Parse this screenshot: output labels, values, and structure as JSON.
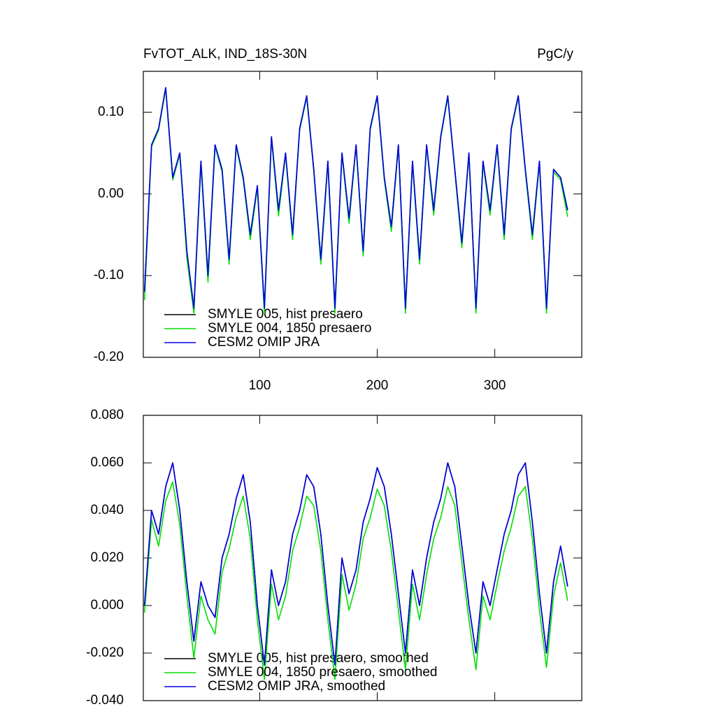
{
  "chart_data": [
    {
      "type": "line",
      "title": "FvTOT_ALK, IND_18S-30N",
      "units": "PgC/y",
      "xlim": [
        1,
        374
      ],
      "xticks": [
        100,
        200,
        300
      ],
      "xtick_labels": true,
      "ylim": [
        -0.2,
        0.15
      ],
      "yticks": [
        {
          "value": -0.2,
          "label": "-0.20"
        },
        {
          "value": -0.1,
          "label": "-0.10"
        },
        {
          "value": 0,
          "label": "0.00"
        },
        {
          "value": 0.1,
          "label": "0.10"
        }
      ],
      "x": [
        2,
        8,
        14,
        20,
        26,
        32,
        38,
        44,
        50,
        56,
        62,
        68,
        74,
        80,
        86,
        92,
        98,
        104,
        110,
        116,
        122,
        128,
        134,
        140,
        146,
        152,
        158,
        164,
        170,
        176,
        182,
        188,
        194,
        200,
        206,
        212,
        218,
        224,
        230,
        236,
        242,
        248,
        254,
        260,
        266,
        272,
        278,
        284,
        290,
        296,
        302,
        308,
        314,
        320,
        326,
        332,
        338,
        344,
        350,
        356,
        362
      ],
      "series": [
        {
          "name": "SMYLE 005, hist presaero",
          "color": "#000000",
          "values": [
            -0.12,
            0.06,
            0.08,
            0.13,
            0.02,
            0.05,
            -0.07,
            -0.14,
            0.04,
            -0.1,
            0.06,
            0.03,
            -0.08,
            0.06,
            0.02,
            -0.05,
            0.01,
            -0.14,
            0.07,
            -0.02,
            0.05,
            -0.05,
            0.08,
            0.12,
            0.03,
            -0.08,
            0.04,
            -0.14,
            0.05,
            -0.03,
            0.06,
            -0.07,
            0.08,
            0.12,
            0.02,
            -0.04,
            0.06,
            -0.14,
            0.04,
            -0.08,
            0.06,
            -0.02,
            0.07,
            0.12,
            0.03,
            -0.06,
            0.05,
            -0.14,
            0.04,
            -0.02,
            0.06,
            -0.05,
            0.08,
            0.12,
            0.03,
            -0.05,
            0.04,
            -0.14,
            0.03,
            0.02,
            -0.02
          ]
        },
        {
          "name": "SMYLE 004, 1850 presaero",
          "color": "#00e000",
          "values": [
            -0.13,
            0.058,
            0.078,
            0.128,
            0.017,
            0.048,
            -0.078,
            -0.146,
            0.037,
            -0.108,
            0.058,
            0.027,
            -0.086,
            0.058,
            0.017,
            -0.056,
            0.007,
            -0.146,
            0.068,
            -0.027,
            0.048,
            -0.056,
            0.078,
            0.118,
            0.027,
            -0.086,
            0.037,
            -0.146,
            0.048,
            -0.036,
            0.058,
            -0.076,
            0.078,
            0.118,
            0.017,
            -0.046,
            0.058,
            -0.146,
            0.037,
            -0.086,
            0.058,
            -0.026,
            0.068,
            0.118,
            0.027,
            -0.066,
            0.048,
            -0.146,
            0.037,
            -0.026,
            0.058,
            -0.056,
            0.078,
            0.118,
            0.027,
            -0.056,
            0.037,
            -0.146,
            0.027,
            0.017,
            -0.028
          ]
        },
        {
          "name": "CESM2 OMIP JRA",
          "color": "#0000e6",
          "values": [
            -0.12,
            0.06,
            0.08,
            0.13,
            0.02,
            0.05,
            -0.07,
            -0.14,
            0.04,
            -0.1,
            0.06,
            0.03,
            -0.08,
            0.06,
            0.02,
            -0.05,
            0.01,
            -0.14,
            0.07,
            -0.02,
            0.05,
            -0.05,
            0.08,
            0.12,
            0.03,
            -0.08,
            0.04,
            -0.14,
            0.05,
            -0.03,
            0.06,
            -0.07,
            0.08,
            0.12,
            0.02,
            -0.04,
            0.06,
            -0.14,
            0.04,
            -0.08,
            0.06,
            -0.02,
            0.07,
            0.12,
            0.03,
            -0.06,
            0.05,
            -0.14,
            0.04,
            -0.02,
            0.06,
            -0.05,
            0.08,
            0.12,
            0.03,
            -0.05,
            0.04,
            -0.14,
            0.03,
            0.02,
            -0.02
          ]
        }
      ]
    },
    {
      "type": "line",
      "xlim": [
        1,
        374
      ],
      "xticks": [
        100,
        200,
        300
      ],
      "xtick_labels": false,
      "ylim": [
        -0.04,
        0.08
      ],
      "yticks": [
        {
          "value": -0.04,
          "label": "-0.040"
        },
        {
          "value": -0.02,
          "label": "-0.020"
        },
        {
          "value": 0,
          "label": "0.000"
        },
        {
          "value": 0.02,
          "label": "0.020"
        },
        {
          "value": 0.04,
          "label": "0.040"
        },
        {
          "value": 0.06,
          "label": "0.060"
        },
        {
          "value": 0.08,
          "label": "0.080"
        }
      ],
      "x": [
        2,
        8,
        14,
        20,
        26,
        32,
        38,
        44,
        50,
        56,
        62,
        68,
        74,
        80,
        86,
        92,
        98,
        104,
        110,
        116,
        122,
        128,
        134,
        140,
        146,
        152,
        158,
        164,
        170,
        176,
        182,
        188,
        194,
        200,
        206,
        212,
        218,
        224,
        230,
        236,
        242,
        248,
        254,
        260,
        266,
        272,
        278,
        284,
        290,
        296,
        302,
        308,
        314,
        320,
        326,
        332,
        338,
        344,
        350,
        356,
        362
      ],
      "series": [
        {
          "name": "SMYLE 005, hist presaero, smoothed",
          "color": "#000000",
          "values": [
            0.0,
            0.04,
            0.03,
            0.05,
            0.06,
            0.04,
            0.01,
            -0.015,
            0.01,
            0.0,
            -0.005,
            0.02,
            0.03,
            0.045,
            0.055,
            0.035,
            0.0,
            -0.025,
            0.015,
            0.0,
            0.01,
            0.03,
            0.04,
            0.055,
            0.05,
            0.03,
            0.0,
            -0.025,
            0.02,
            0.005,
            0.015,
            0.035,
            0.045,
            0.058,
            0.05,
            0.03,
            0.005,
            -0.02,
            0.015,
            0.0,
            0.02,
            0.035,
            0.045,
            0.06,
            0.05,
            0.025,
            0.0,
            -0.02,
            0.01,
            0.0,
            0.015,
            0.03,
            0.04,
            0.055,
            0.06,
            0.035,
            0.005,
            -0.02,
            0.01,
            0.025,
            0.008
          ]
        },
        {
          "name": "SMYLE 004, 1850 presaero, smoothed",
          "color": "#00e000",
          "values": [
            -0.003,
            0.036,
            0.025,
            0.044,
            0.052,
            0.034,
            0.004,
            -0.022,
            0.004,
            -0.006,
            -0.012,
            0.014,
            0.024,
            0.037,
            0.046,
            0.028,
            -0.006,
            -0.031,
            0.009,
            -0.006,
            0.004,
            0.023,
            0.033,
            0.046,
            0.042,
            0.023,
            -0.006,
            -0.031,
            0.013,
            -0.002,
            0.009,
            0.028,
            0.037,
            0.049,
            0.042,
            0.023,
            -0.002,
            -0.027,
            0.009,
            -0.006,
            0.013,
            0.028,
            0.037,
            0.05,
            0.042,
            0.018,
            -0.006,
            -0.027,
            0.004,
            -0.006,
            0.009,
            0.023,
            0.033,
            0.046,
            0.05,
            0.028,
            -0.002,
            -0.026,
            0.004,
            0.018,
            0.002
          ]
        },
        {
          "name": "CESM2 OMIP JRA, smoothed",
          "color": "#0000e6",
          "values": [
            0.0,
            0.04,
            0.03,
            0.05,
            0.06,
            0.04,
            0.01,
            -0.015,
            0.01,
            0.0,
            -0.005,
            0.02,
            0.03,
            0.045,
            0.055,
            0.035,
            0.0,
            -0.025,
            0.015,
            0.0,
            0.01,
            0.03,
            0.04,
            0.055,
            0.05,
            0.03,
            0.0,
            -0.025,
            0.02,
            0.005,
            0.015,
            0.035,
            0.045,
            0.058,
            0.05,
            0.03,
            0.005,
            -0.02,
            0.015,
            0.0,
            0.02,
            0.035,
            0.045,
            0.06,
            0.05,
            0.025,
            0.0,
            -0.02,
            0.01,
            0.0,
            0.015,
            0.03,
            0.04,
            0.055,
            0.06,
            0.035,
            0.005,
            -0.02,
            0.01,
            0.025,
            0.008
          ]
        }
      ]
    }
  ]
}
